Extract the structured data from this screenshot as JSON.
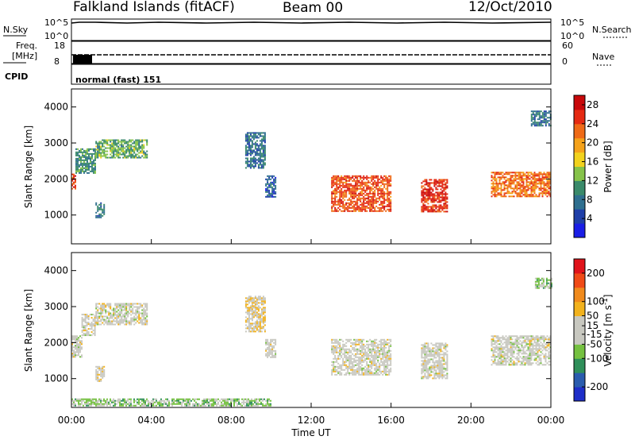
{
  "header": {
    "station": "Falkland Islands (fitACF)",
    "beam": "Beam 00",
    "date": "12/Oct/2010"
  },
  "aux_panels": {
    "nsky_label": "N.Sky",
    "nsky_ticks_left": [
      "10^5",
      "10^0"
    ],
    "nsky_ticks_right": [
      "10^5",
      "10^0"
    ],
    "nsearch_label": "N.Search",
    "freq_label_line1": "Freq.",
    "freq_label_line2": "[MHz]",
    "freq_ticks": [
      "18",
      "8"
    ],
    "nave_label": "Nave",
    "nave_ticks": [
      "60",
      "0"
    ],
    "cpid_label": "CPID",
    "cpid_value": "normal (fast) 151"
  },
  "colors": {
    "power_scale": [
      "#1a1ee6",
      "#1f3fa8",
      "#2f6f8f",
      "#3a8a6a",
      "#86c34a",
      "#f2d21d",
      "#f5a21a",
      "#ef6a17",
      "#e52a12",
      "#c8080a"
    ],
    "velocity_scale": [
      "#e0131a",
      "#f04a16",
      "#f08a1c",
      "#f2b21d",
      "#c8c8c0",
      "#c8c8c0",
      "#75c140",
      "#2f8f5a",
      "#2a5cae",
      "#1e2ec8"
    ]
  },
  "chart_data": [
    {
      "type": "heatmap",
      "panel": "power",
      "ylabel": "Slant Range [km]",
      "xlabel": "Time UT",
      "x_ticks": [
        "00:00",
        "04:00",
        "08:00",
        "12:00",
        "16:00",
        "20:00",
        "00:00"
      ],
      "y_ticks": [
        1000,
        2000,
        3000,
        4000
      ],
      "x_range_hours": [
        0,
        24
      ],
      "y_range_km": [
        200,
        4500
      ],
      "colorbar_label": "Power [dB]",
      "colorbar_ticks": [
        4,
        8,
        12,
        16,
        20,
        24,
        28
      ],
      "colorbar_range": [
        0,
        30
      ],
      "features": [
        {
          "t": [
            0.0,
            0.2
          ],
          "r": [
            1750,
            2150
          ],
          "value": 24
        },
        {
          "t": [
            0.2,
            1.2
          ],
          "r": [
            2150,
            2850
          ],
          "value": 10
        },
        {
          "t": [
            1.2,
            3.8
          ],
          "r": [
            2600,
            3100
          ],
          "value": 12
        },
        {
          "t": [
            1.2,
            1.6
          ],
          "r": [
            950,
            1350
          ],
          "value": 8
        },
        {
          "t": [
            8.7,
            9.7
          ],
          "r": [
            2300,
            3300
          ],
          "value": 8
        },
        {
          "t": [
            9.7,
            10.2
          ],
          "r": [
            1500,
            2100
          ],
          "value": 6
        },
        {
          "t": [
            13.0,
            16.0
          ],
          "r": [
            1100,
            2100
          ],
          "value": 24
        },
        {
          "t": [
            17.5,
            18.8
          ],
          "r": [
            1100,
            2000
          ],
          "value": 26
        },
        {
          "t": [
            21.0,
            24.0
          ],
          "r": [
            1500,
            2200
          ],
          "value": 22
        },
        {
          "t": [
            23.0,
            24.0
          ],
          "r": [
            3500,
            3900
          ],
          "value": 8
        }
      ]
    },
    {
      "type": "heatmap",
      "panel": "velocity",
      "ylabel": "Slant Range [km]",
      "xlabel": "Time UT",
      "x_ticks": [
        "00:00",
        "04:00",
        "08:00",
        "12:00",
        "16:00",
        "20:00",
        "00:00"
      ],
      "y_ticks": [
        1000,
        2000,
        3000,
        4000
      ],
      "x_range_hours": [
        0,
        24
      ],
      "y_range_km": [
        200,
        4500
      ],
      "colorbar_label": "Velocity [m s^-1]",
      "colorbar_ticks": [
        200,
        100,
        50,
        15,
        -15,
        -50,
        -100,
        -200
      ],
      "colorbar_range": [
        -250,
        250
      ],
      "features": [
        {
          "t": [
            0.0,
            0.5
          ],
          "r": [
            1600,
            2200
          ],
          "value": 0
        },
        {
          "t": [
            0.5,
            1.2
          ],
          "r": [
            2200,
            2800
          ],
          "value": 0
        },
        {
          "t": [
            1.2,
            3.8
          ],
          "r": [
            2500,
            3100
          ],
          "value": 0
        },
        {
          "t": [
            1.2,
            1.6
          ],
          "r": [
            950,
            1350
          ],
          "value": 0
        },
        {
          "t": [
            8.7,
            9.7
          ],
          "r": [
            2300,
            3300
          ],
          "value": 40
        },
        {
          "t": [
            9.7,
            10.2
          ],
          "r": [
            1600,
            2100
          ],
          "value": 0
        },
        {
          "t": [
            13.0,
            16.0
          ],
          "r": [
            1100,
            2100
          ],
          "value": 0
        },
        {
          "t": [
            17.5,
            18.8
          ],
          "r": [
            1000,
            2000
          ],
          "value": 0
        },
        {
          "t": [
            21.0,
            24.0
          ],
          "r": [
            1400,
            2200
          ],
          "value": 0
        },
        {
          "t": [
            23.2,
            24.0
          ],
          "r": [
            3500,
            3800
          ],
          "value": -60
        },
        {
          "t": [
            0.0,
            10.0
          ],
          "r": [
            250,
            450
          ],
          "value": -60
        }
      ]
    }
  ]
}
